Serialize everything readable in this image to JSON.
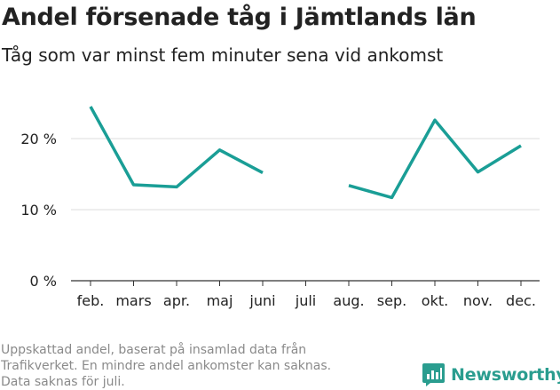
{
  "header": {
    "title": "Andel försenade tåg i Jämtlands län",
    "subtitle": "Tåg som var minst fem minuter sena vid ankomst"
  },
  "chart_data": {
    "type": "line",
    "categories": [
      "feb.",
      "mars",
      "apr.",
      "maj",
      "juni",
      "juli",
      "aug.",
      "sep.",
      "okt.",
      "nov.",
      "dec."
    ],
    "series": [
      {
        "values": [
          24.5,
          13.5,
          13.2,
          18.4,
          15.2,
          null,
          13.4,
          11.7,
          22.6,
          15.3,
          19.0
        ]
      }
    ],
    "y_ticks": [
      0,
      10,
      20
    ],
    "y_tick_labels": [
      "0 %",
      "10 %",
      "20 %"
    ],
    "ylim": [
      0,
      25
    ],
    "grid": true,
    "line_color": "#1a9e96"
  },
  "footnote": {
    "lines": [
      "Uppskattad andel, baserat på insamlad data från",
      "Trafikverket. En mindre andel ankomster kan saknas.",
      "Data saknas för juli."
    ]
  },
  "brand": {
    "name": "Newsworthy",
    "icon": "newsworthy-logo-icon",
    "color": "#2a9d8f"
  }
}
